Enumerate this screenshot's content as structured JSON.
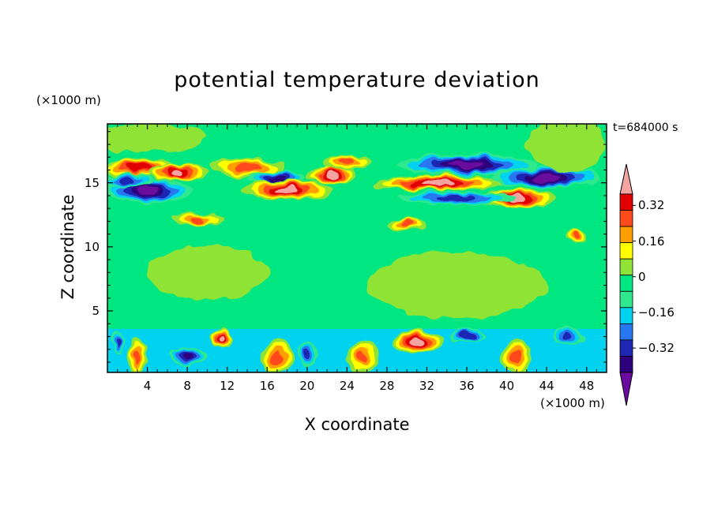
{
  "chart_data": {
    "type": "heatmap",
    "title": "potential temperature deviation",
    "xlabel": "X coordinate",
    "ylabel": "Z coordinate",
    "x_unit": "(×1000 m)",
    "y_unit": "(×1000 m)",
    "time_label": "t=684000 s",
    "xlim": [
      0,
      50
    ],
    "ylim": [
      0.2,
      19.6
    ],
    "x_ticks": [
      4,
      8,
      12,
      16,
      20,
      24,
      28,
      32,
      36,
      40,
      44,
      48
    ],
    "y_ticks": [
      5,
      10,
      15
    ],
    "colorbar": {
      "levels": [
        -0.48,
        -0.4,
        -0.32,
        -0.24,
        -0.16,
        -0.08,
        0,
        0.08,
        0.16,
        0.24,
        0.32,
        0.4,
        0.48
      ],
      "tick_labels": [
        "-0.32",
        "-0.16",
        "0",
        "0.16",
        "0.32"
      ],
      "tick_values": [
        -0.32,
        -0.16,
        0,
        0.16,
        0.32
      ],
      "colors": [
        "#6a0a9e",
        "#2f007d",
        "#1f27b4",
        "#2777f0",
        "#00d2f0",
        "#2fe88d",
        "#00e680",
        "#8fe336",
        "#ffff00",
        "#ff9e00",
        "#ff4a1c",
        "#e10000",
        "#f4a3a3"
      ]
    },
    "features": [
      {
        "x": 3,
        "z": 16.2,
        "rx": 3.5,
        "rz": 0.6,
        "value": 0.44
      },
      {
        "x": 7,
        "z": 15.8,
        "rx": 3,
        "rz": 0.5,
        "value": 0.5
      },
      {
        "x": 4,
        "z": 14.4,
        "rx": 4.5,
        "rz": 0.8,
        "value": -0.46
      },
      {
        "x": 2,
        "z": 15.2,
        "rx": 2.5,
        "rz": 0.4,
        "value": -0.3
      },
      {
        "x": 14,
        "z": 16.2,
        "rx": 4,
        "rz": 0.6,
        "value": 0.3
      },
      {
        "x": 17,
        "z": 15.3,
        "rx": 3,
        "rz": 0.5,
        "value": -0.4
      },
      {
        "x": 18,
        "z": 14.4,
        "rx": 4.5,
        "rz": 0.6,
        "value": 0.5
      },
      {
        "x": 22.5,
        "z": 15.6,
        "rx": 2.5,
        "rz": 0.6,
        "value": 0.45
      },
      {
        "x": 24,
        "z": 16.6,
        "rx": 2.5,
        "rz": 0.5,
        "value": 0.3
      },
      {
        "x": 33,
        "z": 15,
        "rx": 6.5,
        "rz": 0.5,
        "value": 0.5
      },
      {
        "x": 41,
        "z": 13.8,
        "rx": 4,
        "rz": 0.6,
        "value": 0.5
      },
      {
        "x": 36,
        "z": 16.4,
        "rx": 7,
        "rz": 0.7,
        "value": -0.46
      },
      {
        "x": 44,
        "z": 15.4,
        "rx": 5.5,
        "rz": 0.7,
        "value": -0.48
      },
      {
        "x": 35,
        "z": 13.8,
        "rx": 6,
        "rz": 0.4,
        "value": -0.28
      },
      {
        "x": 47,
        "z": 16.8,
        "rx": 2,
        "rz": 0.4,
        "value": 0.44
      },
      {
        "x": 9,
        "z": 12.2,
        "rx": 2.5,
        "rz": 0.4,
        "value": 0.3
      },
      {
        "x": 30,
        "z": 11.8,
        "rx": 2,
        "rz": 0.4,
        "value": 0.3
      },
      {
        "x": 47,
        "z": 10.8,
        "rx": 1,
        "rz": 0.4,
        "value": 0.3
      },
      {
        "x": 11.5,
        "z": 2.8,
        "rx": 1.2,
        "rz": 0.6,
        "value": 0.5
      },
      {
        "x": 31,
        "z": 2.6,
        "rx": 2.5,
        "rz": 0.8,
        "value": 0.5
      },
      {
        "x": 3,
        "z": 1.4,
        "rx": 1,
        "rz": 1.2,
        "value": 0.28
      },
      {
        "x": 17,
        "z": 1.4,
        "rx": 1.5,
        "rz": 1.2,
        "value": 0.34
      },
      {
        "x": 25.5,
        "z": 1.4,
        "rx": 1.5,
        "rz": 1.2,
        "value": 0.34
      },
      {
        "x": 41,
        "z": 1.4,
        "rx": 1.5,
        "rz": 1.2,
        "value": 0.32
      },
      {
        "x": 8,
        "z": 1.4,
        "rx": 2,
        "rz": 0.6,
        "value": -0.4
      },
      {
        "x": 20,
        "z": 1.6,
        "rx": 1,
        "rz": 0.8,
        "value": -0.3
      },
      {
        "x": 1,
        "z": 2.5,
        "rx": 0.6,
        "rz": 0.8,
        "value": -0.3
      },
      {
        "x": 36,
        "z": 3,
        "rx": 2,
        "rz": 0.4,
        "value": -0.36
      },
      {
        "x": 46,
        "z": 3,
        "rx": 1.5,
        "rz": 0.5,
        "value": -0.3
      },
      {
        "x": 10,
        "z": 8,
        "rx": 6,
        "rz": 2,
        "value": 0.1
      },
      {
        "x": 35,
        "z": 7,
        "rx": 9,
        "rz": 2.5,
        "value": 0.1
      },
      {
        "x": 4,
        "z": 18.5,
        "rx": 6,
        "rz": 1,
        "value": 0.1
      },
      {
        "x": 46,
        "z": 18,
        "rx": 4,
        "rz": 2,
        "value": 0.1
      }
    ]
  }
}
